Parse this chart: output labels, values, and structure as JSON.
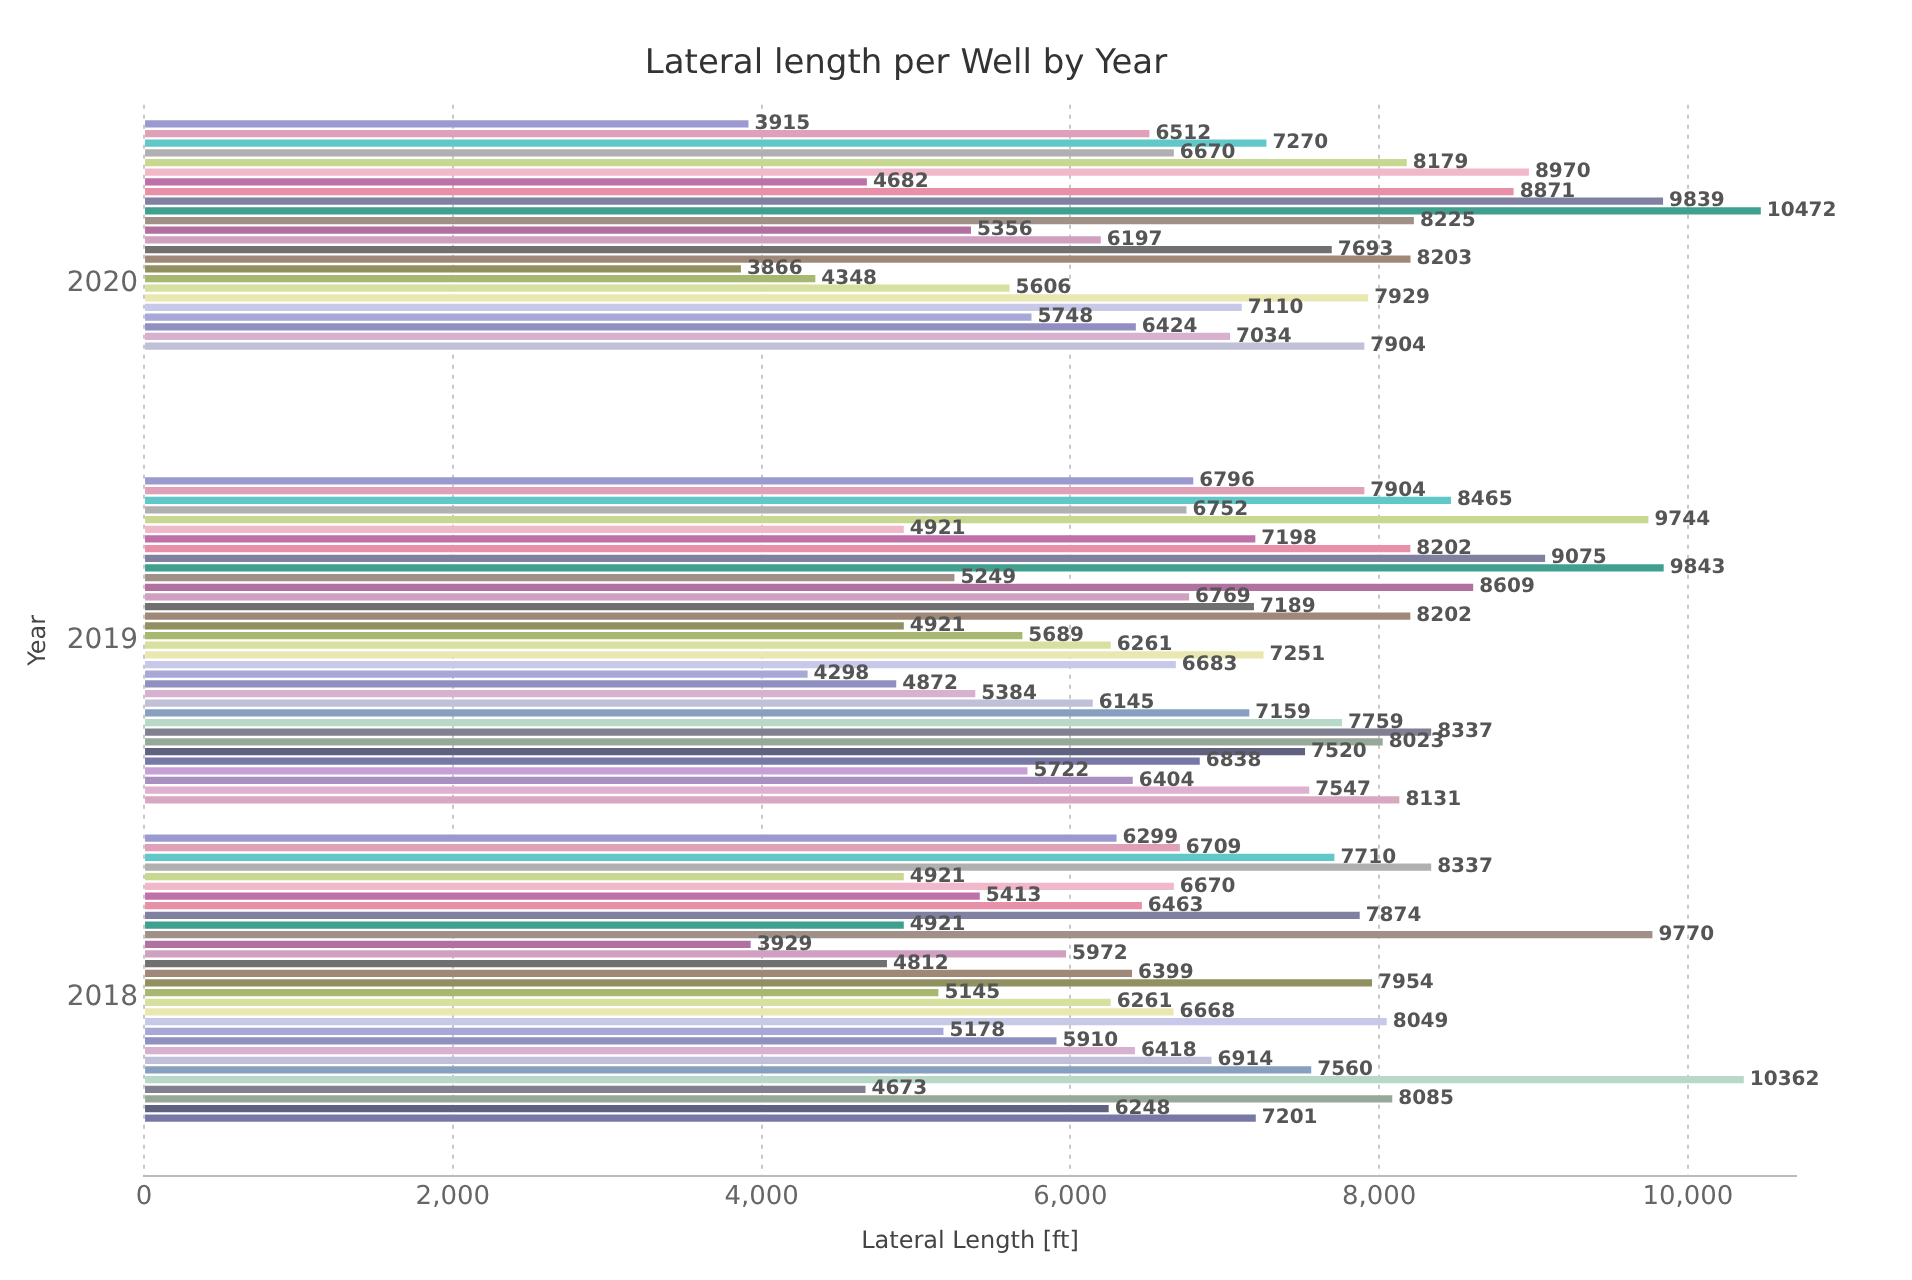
{
  "chart_data": {
    "type": "bar",
    "orientation": "horizontal",
    "title": "Lateral length per Well by Year",
    "xlabel": "Lateral Length [ft]",
    "ylabel": "Year",
    "categories": [
      "2020",
      "2019",
      "2018"
    ],
    "xlim": [
      0,
      10700
    ],
    "xticks": [
      {
        "value": 0,
        "label": "0"
      },
      {
        "value": 2000,
        "label": "2,000"
      },
      {
        "value": 4000,
        "label": "4,000"
      },
      {
        "value": 6000,
        "label": "6,000"
      },
      {
        "value": 8000,
        "label": "8,000"
      },
      {
        "value": 10000,
        "label": "10,000"
      }
    ],
    "grid": "x",
    "legend": false,
    "data_labels": true,
    "series": [
      {
        "color": "#9a9ad0",
        "values": [
          3915,
          6796,
          6299
        ]
      },
      {
        "color": "#e0a0b8",
        "values": [
          6512,
          7904,
          6709
        ]
      },
      {
        "color": "#60c8c8",
        "values": [
          7270,
          8465,
          7710
        ]
      },
      {
        "color": "#b0b0b0",
        "values": [
          6670,
          6752,
          8337
        ]
      },
      {
        "color": "#c8d890",
        "values": [
          8179,
          9744,
          4921
        ]
      },
      {
        "color": "#f0b8c8",
        "values": [
          8970,
          4921,
          6670
        ]
      },
      {
        "color": "#c070a8",
        "values": [
          4682,
          7198,
          5413
        ]
      },
      {
        "color": "#e890a8",
        "values": [
          8871,
          8202,
          6463
        ]
      },
      {
        "color": "#8080a0",
        "values": [
          9839,
          9075,
          7874
        ]
      },
      {
        "color": "#40a090",
        "values": [
          10472,
          9843,
          4921
        ]
      },
      {
        "color": "#a09088",
        "values": [
          8225,
          5249,
          9770
        ]
      },
      {
        "color": "#b070a0",
        "values": [
          5356,
          8609,
          3929
        ]
      },
      {
        "color": "#d0a0c0",
        "values": [
          6197,
          6769,
          5972
        ]
      },
      {
        "color": "#707070",
        "values": [
          7693,
          7189,
          4812
        ]
      },
      {
        "color": "#a08878",
        "values": [
          8203,
          8202,
          6399
        ]
      },
      {
        "color": "#909060",
        "values": [
          3866,
          4921,
          7954
        ]
      },
      {
        "color": "#a8b870",
        "values": [
          4348,
          5689,
          5145
        ]
      },
      {
        "color": "#d8e0a0",
        "values": [
          5606,
          6261,
          6261
        ]
      },
      {
        "color": "#e8e8b0",
        "values": [
          7929,
          7251,
          6668
        ]
      },
      {
        "color": "#c8c8e8",
        "values": [
          7110,
          6683,
          8049
        ]
      },
      {
        "color": "#a8a8d8",
        "values": [
          5748,
          4298,
          5178
        ]
      },
      {
        "color": "#9090c0",
        "values": [
          6424,
          4872,
          5910
        ]
      },
      {
        "color": "#d8b0d0",
        "values": [
          7034,
          5384,
          6418
        ]
      },
      {
        "color": "#c0c0d8",
        "values": [
          7904,
          6145,
          6914
        ]
      },
      {
        "color": "#88a0c0",
        "values": [
          null,
          7159,
          7560
        ]
      },
      {
        "color": "#b8d8c8",
        "values": [
          null,
          7759,
          10362
        ]
      },
      {
        "color": "#808090",
        "values": [
          null,
          8337,
          4673
        ]
      },
      {
        "color": "#98a898",
        "values": [
          null,
          8023,
          8085
        ]
      },
      {
        "color": "#606080",
        "values": [
          null,
          7520,
          6248
        ]
      },
      {
        "color": "#7878a8",
        "values": [
          null,
          6838,
          7201
        ]
      },
      {
        "color": "#c8a0d8",
        "values": [
          null,
          5722,
          null
        ]
      },
      {
        "color": "#a890c0",
        "values": [
          null,
          6404,
          null
        ]
      },
      {
        "color": "#e0b0d0",
        "values": [
          null,
          7547,
          null
        ]
      },
      {
        "color": "#d8a8c0",
        "values": [
          null,
          8131,
          null
        ]
      }
    ]
  }
}
